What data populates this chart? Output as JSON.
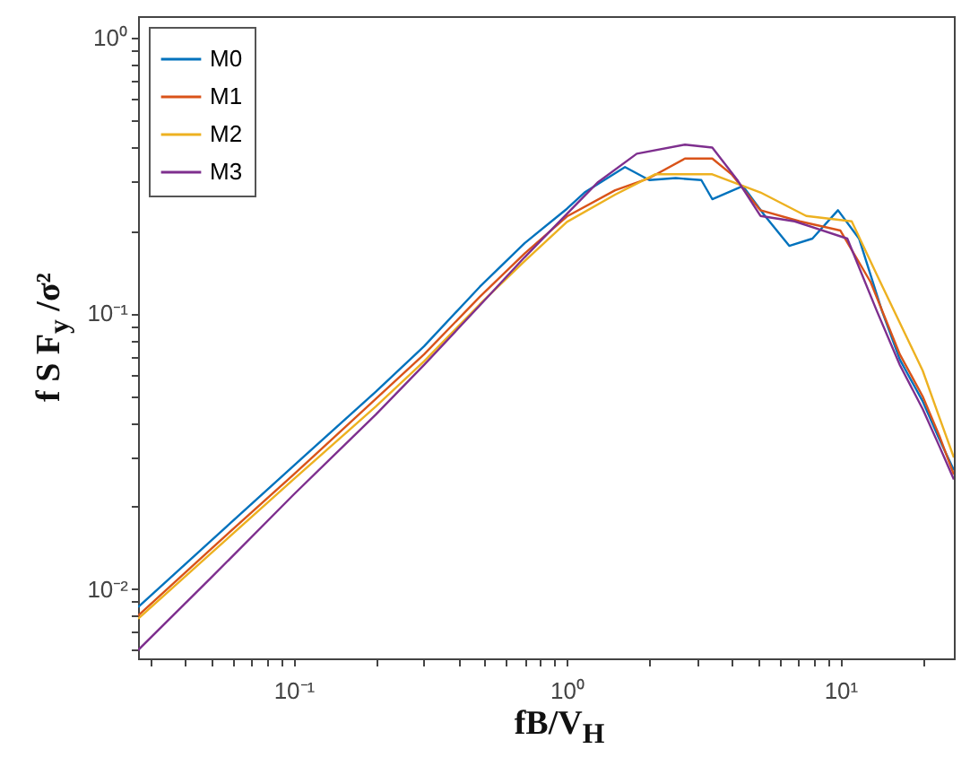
{
  "chart_data": {
    "type": "line",
    "xlabel": "fB/V$_{H}$",
    "ylabel": "f S F$_{y}$ /σ²",
    "log": "xy",
    "grid": false,
    "legend": "top left",
    "marker": "none",
    "line_style": "solid",
    "xlim": [
      0.027,
      26
    ],
    "ylim": [
      0.0056,
      1.2
    ],
    "xticks": [
      {
        "value": 0.03,
        "label": null
      },
      {
        "value": 0.04,
        "label": null
      },
      {
        "value": 0.05,
        "label": null
      },
      {
        "value": 0.06,
        "label": null
      },
      {
        "value": 0.07,
        "label": null
      },
      {
        "value": 0.08,
        "label": null
      },
      {
        "value": 0.09,
        "label": null
      },
      {
        "value": 0.1,
        "label": "10⁻¹"
      },
      {
        "value": 0.2,
        "label": null
      },
      {
        "value": 0.3,
        "label": null
      },
      {
        "value": 0.4,
        "label": null
      },
      {
        "value": 0.5,
        "label": null
      },
      {
        "value": 0.6,
        "label": null
      },
      {
        "value": 0.7,
        "label": null
      },
      {
        "value": 0.8,
        "label": null
      },
      {
        "value": 0.9,
        "label": null
      },
      {
        "value": 1,
        "label": "10⁰"
      },
      {
        "value": 2,
        "label": null
      },
      {
        "value": 3,
        "label": null
      },
      {
        "value": 4,
        "label": null
      },
      {
        "value": 5,
        "label": null
      },
      {
        "value": 6,
        "label": null
      },
      {
        "value": 7,
        "label": null
      },
      {
        "value": 8,
        "label": null
      },
      {
        "value": 9,
        "label": null
      },
      {
        "value": 10,
        "label": "10¹"
      },
      {
        "value": 20,
        "label": null
      }
    ],
    "yticks": [
      {
        "value": 0.006,
        "label": null
      },
      {
        "value": 0.007,
        "label": null
      },
      {
        "value": 0.008,
        "label": null
      },
      {
        "value": 0.009,
        "label": null
      },
      {
        "value": 0.01,
        "label": "10⁻²"
      },
      {
        "value": 0.02,
        "label": null
      },
      {
        "value": 0.03,
        "label": null
      },
      {
        "value": 0.04,
        "label": null
      },
      {
        "value": 0.05,
        "label": null
      },
      {
        "value": 0.06,
        "label": null
      },
      {
        "value": 0.07,
        "label": null
      },
      {
        "value": 0.08,
        "label": null
      },
      {
        "value": 0.09,
        "label": null
      },
      {
        "value": 0.1,
        "label": "10⁻¹"
      },
      {
        "value": 0.2,
        "label": null
      },
      {
        "value": 0.3,
        "label": null
      },
      {
        "value": 0.4,
        "label": null
      },
      {
        "value": 0.5,
        "label": null
      },
      {
        "value": 0.6,
        "label": null
      },
      {
        "value": 0.7,
        "label": null
      },
      {
        "value": 0.8,
        "label": null
      },
      {
        "value": 0.9,
        "label": null
      },
      {
        "value": 1,
        "label": "10⁰"
      }
    ],
    "series": [
      {
        "name": "M0",
        "color": "#0072bd",
        "x": [
          0.027,
          0.05,
          0.1,
          0.2,
          0.3,
          0.48,
          0.7,
          1.0,
          1.16,
          1.63,
          2.0,
          2.5,
          3.1,
          3.4,
          4.4,
          5.3,
          6.5,
          7.9,
          9.8,
          11.7,
          14.2,
          16.5,
          20,
          23,
          26
        ],
        "values": [
          0.0086,
          0.015,
          0.028,
          0.052,
          0.076,
          0.125,
          0.18,
          0.24,
          0.275,
          0.34,
          0.305,
          0.31,
          0.305,
          0.26,
          0.29,
          0.226,
          0.176,
          0.187,
          0.237,
          0.187,
          0.102,
          0.068,
          0.048,
          0.035,
          0.027
        ]
      },
      {
        "name": "M1",
        "color": "#d95319",
        "x": [
          0.027,
          0.05,
          0.1,
          0.2,
          0.3,
          0.48,
          0.7,
          1.0,
          1.5,
          2.0,
          2.7,
          3.4,
          4.0,
          5.1,
          7.1,
          10,
          12.9,
          16.5,
          20,
          23,
          26
        ],
        "values": [
          0.008,
          0.014,
          0.026,
          0.049,
          0.071,
          0.115,
          0.165,
          0.225,
          0.28,
          0.31,
          0.365,
          0.365,
          0.32,
          0.237,
          0.216,
          0.2,
          0.13,
          0.071,
          0.05,
          0.036,
          0.026
        ]
      },
      {
        "name": "M2",
        "color": "#edb120",
        "x": [
          0.027,
          0.05,
          0.1,
          0.2,
          0.3,
          0.48,
          0.7,
          1.0,
          1.5,
          2.1,
          3.4,
          5.1,
          7.5,
          11,
          13.6,
          20,
          23,
          26
        ],
        "values": [
          0.0078,
          0.0135,
          0.025,
          0.046,
          0.067,
          0.108,
          0.155,
          0.215,
          0.27,
          0.32,
          0.32,
          0.275,
          0.226,
          0.216,
          0.138,
          0.062,
          0.042,
          0.03
        ]
      },
      {
        "name": "M3",
        "color": "#7e2f8e",
        "x": [
          0.027,
          0.05,
          0.1,
          0.2,
          0.3,
          0.48,
          0.7,
          1.0,
          1.3,
          1.8,
          2.7,
          3.4,
          4.2,
          5.1,
          6.8,
          10.6,
          13.6,
          16.5,
          20,
          23,
          26
        ],
        "values": [
          0.006,
          0.011,
          0.022,
          0.043,
          0.065,
          0.107,
          0.16,
          0.23,
          0.3,
          0.38,
          0.41,
          0.4,
          0.305,
          0.226,
          0.216,
          0.187,
          0.102,
          0.065,
          0.045,
          0.033,
          0.025
        ]
      }
    ]
  }
}
